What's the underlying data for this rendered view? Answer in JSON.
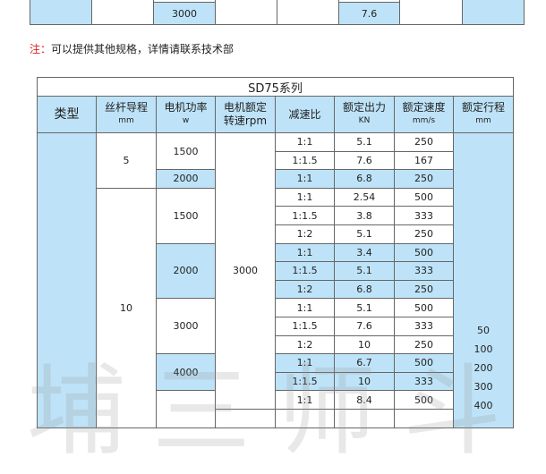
{
  "top_table": {
    "power": "3000",
    "force": "7.6"
  },
  "note": {
    "label": "注：",
    "text": "可以提供其他规格，详情请联系技术部"
  },
  "table": {
    "title": "SD75系列",
    "headers": [
      {
        "label": "类型",
        "unit": ""
      },
      {
        "label": "丝杆导程",
        "unit": "mm"
      },
      {
        "label": "电机功率",
        "unit": "w"
      },
      {
        "label": "电机额定",
        "unit": "转速rpm"
      },
      {
        "label": "减速比",
        "unit": ""
      },
      {
        "label": "额定出力",
        "unit": "KN"
      },
      {
        "label": "额定速度",
        "unit": "mm/s"
      },
      {
        "label": "额定行程",
        "unit": "mm"
      }
    ],
    "leads": [
      "5",
      "10"
    ],
    "powers": [
      "1500",
      "2000",
      "1500",
      "2000",
      "3000",
      "4000"
    ],
    "rpm": "3000",
    "rows": [
      {
        "ratio": "1:1",
        "force": "5.1",
        "speed": "250"
      },
      {
        "ratio": "1:1.5",
        "force": "7.6",
        "speed": "167"
      },
      {
        "ratio": "1:1",
        "force": "6.8",
        "speed": "250"
      },
      {
        "ratio": "1:1",
        "force": "2.54",
        "speed": "500"
      },
      {
        "ratio": "1:1.5",
        "force": "3.8",
        "speed": "333"
      },
      {
        "ratio": "1:2",
        "force": "5.1",
        "speed": "250"
      },
      {
        "ratio": "1:1",
        "force": "3.4",
        "speed": "500"
      },
      {
        "ratio": "1:1.5",
        "force": "5.1",
        "speed": "333"
      },
      {
        "ratio": "1:2",
        "force": "6.8",
        "speed": "250"
      },
      {
        "ratio": "1:1",
        "force": "5.1",
        "speed": "500"
      },
      {
        "ratio": "1:1.5",
        "force": "7.6",
        "speed": "333"
      },
      {
        "ratio": "1:2",
        "force": "10",
        "speed": "250"
      },
      {
        "ratio": "1:1",
        "force": "6.7",
        "speed": "500"
      },
      {
        "ratio": "1:1.5",
        "force": "10",
        "speed": "333"
      },
      {
        "ratio": "1:1",
        "force": "8.4",
        "speed": "500"
      }
    ],
    "strokes": [
      "50",
      "100",
      "200",
      "300",
      "400"
    ]
  },
  "colors": {
    "cell_blue": "#bee3f8",
    "note_red": "#e02020",
    "border": "#666666"
  }
}
